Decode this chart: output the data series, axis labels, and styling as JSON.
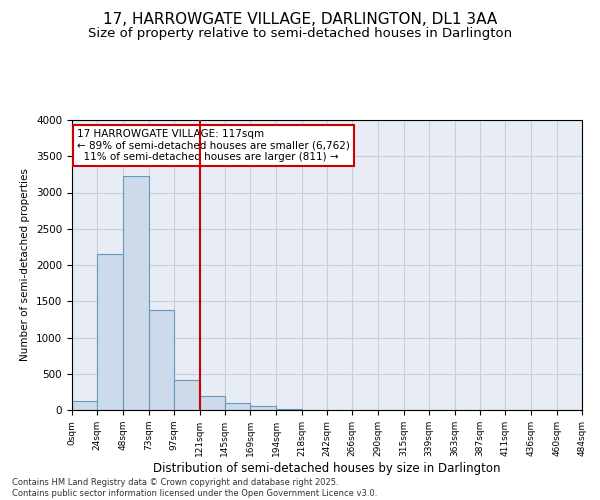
{
  "title1": "17, HARROWGATE VILLAGE, DARLINGTON, DL1 3AA",
  "title2": "Size of property relative to semi-detached houses in Darlington",
  "xlabel": "Distribution of semi-detached houses by size in Darlington",
  "ylabel": "Number of semi-detached properties",
  "footer": "Contains HM Land Registry data © Crown copyright and database right 2025.\nContains public sector information licensed under the Open Government Licence v3.0.",
  "property_size": 117,
  "property_label": "17 HARROWGATE VILLAGE: 117sqm",
  "pct_smaller": 89,
  "count_smaller": 6762,
  "pct_larger": 11,
  "count_larger": 811,
  "bin_edges": [
    0,
    24,
    48,
    73,
    97,
    121,
    145,
    169,
    194,
    218,
    242,
    266,
    290,
    315,
    339,
    363,
    387,
    411,
    436,
    460,
    484
  ],
  "bar_heights": [
    120,
    2150,
    3225,
    1375,
    420,
    200,
    100,
    60,
    10,
    0,
    0,
    0,
    0,
    0,
    0,
    0,
    0,
    0,
    0,
    0
  ],
  "bar_color": "#ccdaea",
  "bar_edge_color": "#6699bb",
  "vline_color": "#cc0000",
  "vline_x": 121,
  "grid_color": "#c5cfe0",
  "bg_color": "#e8edf5",
  "ylim": [
    0,
    4000
  ],
  "yticks": [
    0,
    500,
    1000,
    1500,
    2000,
    2500,
    3000,
    3500,
    4000
  ],
  "annotation_box_color": "#cc0000",
  "title1_fontsize": 11,
  "title2_fontsize": 9.5
}
